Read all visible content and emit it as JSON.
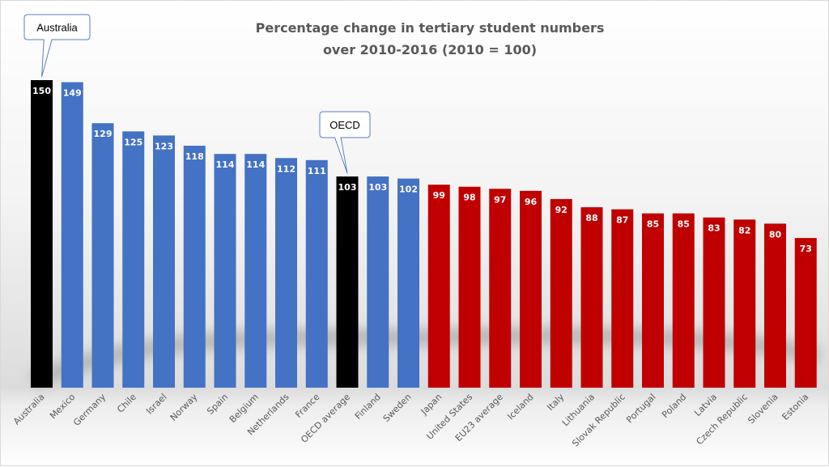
{
  "chart_data": {
    "type": "bar",
    "title": "Percentage change in tertiary student numbers",
    "subtitle": "over 2010-2016 (2010 = 100)",
    "xlabel": "",
    "ylabel": "",
    "ylim": [
      0,
      150
    ],
    "grid": false,
    "categories": [
      "Australia",
      "Mexico",
      "Germany",
      "Chile",
      "Israel",
      "Norway",
      "Spain",
      "Belgium",
      "Netherlands",
      "France",
      "OECD average",
      "Finland",
      "Sweden",
      "Japan",
      "United States",
      "EU23 average",
      "Iceland",
      "Italy",
      "Lithuania",
      "Slovak Republic",
      "Portugal",
      "Poland",
      "Latvia",
      "Czech Republic",
      "Slovenia",
      "Estonia"
    ],
    "values": [
      150,
      149,
      129,
      125,
      123,
      118,
      114,
      114,
      112,
      111,
      103,
      103,
      102,
      99,
      98,
      97,
      96,
      92,
      88,
      87,
      85,
      85,
      83,
      82,
      80,
      73
    ],
    "colors": [
      "#000000",
      "#4472C4",
      "#4472C4",
      "#4472C4",
      "#4472C4",
      "#4472C4",
      "#4472C4",
      "#4472C4",
      "#4472C4",
      "#4472C4",
      "#000000",
      "#4472C4",
      "#4472C4",
      "#C00000",
      "#C00000",
      "#C00000",
      "#C00000",
      "#C00000",
      "#C00000",
      "#C00000",
      "#C00000",
      "#C00000",
      "#C00000",
      "#C00000",
      "#C00000",
      "#C00000"
    ],
    "annotations": [
      {
        "text": "Australia",
        "category": "Australia"
      },
      {
        "text": "OECD",
        "category": "OECD average"
      }
    ]
  }
}
